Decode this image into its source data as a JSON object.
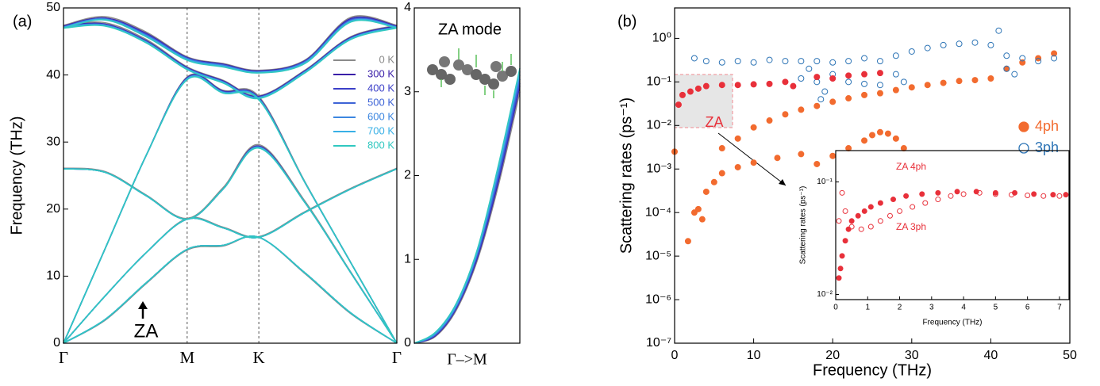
{
  "chart_data": [
    {
      "type": "line",
      "panel_label": "(a)",
      "ylabel": "Frequency (THz)",
      "annotations": [
        "ZA"
      ],
      "x": [
        0,
        0.124,
        0.248,
        0.371,
        0.479,
        0.586,
        0.724,
        0.862,
        1
      ],
      "xlim": [
        0,
        1
      ],
      "xticks": [
        {
          "value": 0,
          "label": "Γ"
        },
        {
          "value": 0.371,
          "label": "M"
        },
        {
          "value": 0.586,
          "label": "K"
        },
        {
          "value": 1,
          "label": "Γ"
        }
      ],
      "xgrid": true,
      "ylim": [
        0,
        50
      ],
      "yticks": [
        0,
        10,
        20,
        30,
        40,
        50
      ],
      "legend": "upper right",
      "series": [
        {
          "name": "0 K",
          "color": "#8a8a8a",
          "values": [
            [
              0,
              3.4,
              8.9,
              13.9,
              14.5,
              15.8,
              10.4,
              4.4,
              0
            ],
            [
              0,
              7,
              13.5,
              18.6,
              17.3,
              15.9,
              19.6,
              23.1,
              26.1
            ],
            [
              26.1,
              25.6,
              22.1,
              18.6,
              23.2,
              29.6,
              21.2,
              10.6,
              0
            ],
            [
              0,
              14,
              28,
              39.7,
              37.7,
              36.8,
              24.1,
              12,
              0
            ],
            [
              47.4,
              47.8,
              45.3,
              41.2,
              39.2,
              36.9,
              40.7,
              45.7,
              47.4
            ],
            [
              47.4,
              48.7,
              46.4,
              42.7,
              41.7,
              40.7,
              42.2,
              48.6,
              47.4
            ]
          ]
        },
        {
          "name": "300 K",
          "color": "#3a1fa8",
          "values": [
            [
              0,
              3.5,
              9,
              14,
              14.6,
              15.8,
              10.5,
              4.5,
              0
            ],
            [
              0,
              7,
              13.5,
              18.5,
              17.2,
              15.8,
              19.5,
              23,
              26
            ],
            [
              26,
              25.5,
              22,
              18.5,
              23,
              29.4,
              21,
              10.5,
              0
            ],
            [
              0,
              14,
              28,
              39.6,
              37.6,
              36.6,
              24,
              12,
              0
            ],
            [
              47.3,
              47.6,
              45.1,
              41.1,
              39.1,
              36.8,
              40.6,
              45.6,
              47.3
            ],
            [
              47.3,
              48.5,
              46.2,
              42.6,
              41.6,
              40.6,
              42.1,
              48.4,
              47.3
            ]
          ]
        },
        {
          "name": "400 K",
          "color": "#3b3fc8",
          "values": [
            [
              0,
              3.5,
              9,
              14,
              14.6,
              15.8,
              10.5,
              4.5,
              0
            ],
            [
              0,
              7,
              13.5,
              18.5,
              17.2,
              15.8,
              19.5,
              23,
              26
            ],
            [
              26,
              25.5,
              22,
              18.5,
              23,
              29.3,
              21,
              10.5,
              0
            ],
            [
              0,
              14,
              28,
              39.5,
              37.5,
              36.5,
              24,
              12,
              0
            ],
            [
              47.2,
              47.5,
              45,
              41,
              39,
              36.7,
              40.5,
              45.5,
              47.2
            ],
            [
              47.2,
              48.4,
              46.1,
              42.5,
              41.5,
              40.5,
              42,
              48.3,
              47.2
            ]
          ]
        },
        {
          "name": "500 K",
          "color": "#3d63d6",
          "values": [
            [
              0,
              3.5,
              9,
              14,
              14.6,
              15.8,
              10.5,
              4.5,
              0
            ],
            [
              0,
              7,
              13.5,
              18.5,
              17.2,
              15.8,
              19.5,
              23,
              26
            ],
            [
              26,
              25.5,
              22,
              18.5,
              23,
              29.3,
              21,
              10.5,
              0
            ],
            [
              0,
              14,
              28,
              39.5,
              37.5,
              36.5,
              24,
              12,
              0
            ],
            [
              47.2,
              47.5,
              45,
              41,
              39,
              36.7,
              40.5,
              45.5,
              47.2
            ],
            [
              47.2,
              48.4,
              46,
              42.5,
              41.5,
              40.5,
              42,
              48.2,
              47.2
            ]
          ]
        },
        {
          "name": "600 K",
          "color": "#3c86e0",
          "values": [
            [
              0,
              3.5,
              9,
              14,
              14.6,
              15.8,
              10.5,
              4.5,
              0
            ],
            [
              0,
              7,
              13.5,
              18.5,
              17.2,
              15.8,
              19.5,
              23,
              26
            ],
            [
              26,
              25.5,
              22,
              18.5,
              23,
              29.2,
              21,
              10.5,
              0
            ],
            [
              0,
              14,
              28,
              39.4,
              37.4,
              36.4,
              24,
              12,
              0
            ],
            [
              47.1,
              47.4,
              44.9,
              40.9,
              38.9,
              36.6,
              40.4,
              45.4,
              47.1
            ],
            [
              47.1,
              48.3,
              45.9,
              42.4,
              41.4,
              40.4,
              41.9,
              48.1,
              47.1
            ]
          ]
        },
        {
          "name": "700 K",
          "color": "#38b0e6",
          "values": [
            [
              0,
              3.5,
              9,
              14,
              14.6,
              15.8,
              10.5,
              4.5,
              0
            ],
            [
              0,
              7,
              13.5,
              18.5,
              17.2,
              15.8,
              19.5,
              23,
              26
            ],
            [
              26,
              25.5,
              22,
              18.5,
              23,
              29.2,
              21,
              10.5,
              0
            ],
            [
              0,
              14,
              28,
              39.4,
              37.4,
              36.4,
              24,
              12,
              0
            ],
            [
              47.1,
              47.4,
              44.9,
              40.9,
              38.9,
              36.6,
              40.4,
              45.4,
              47.1
            ],
            [
              47.1,
              48.3,
              45.8,
              42.3,
              41.3,
              40.4,
              41.8,
              48,
              47.1
            ]
          ]
        },
        {
          "name": "800 K",
          "color": "#30c8c0",
          "values": [
            [
              0,
              3.5,
              9,
              14,
              14.6,
              15.8,
              10.5,
              4.5,
              0
            ],
            [
              0,
              7,
              13.5,
              18.5,
              17.2,
              15.8,
              19.5,
              23,
              26
            ],
            [
              26,
              25.5,
              22,
              18.5,
              23,
              29.1,
              21,
              10.5,
              0
            ],
            [
              0,
              14,
              28,
              39.3,
              37.3,
              36.3,
              24,
              12,
              0
            ],
            [
              47,
              47.3,
              44.8,
              40.8,
              38.8,
              36.5,
              40.3,
              45.3,
              47
            ],
            [
              47,
              48.2,
              45.7,
              42.2,
              41.2,
              40.3,
              41.7,
              47.9,
              47
            ]
          ]
        }
      ]
    },
    {
      "type": "line",
      "title": "ZA mode",
      "xlabel": "Γ–>M",
      "x": [
        0,
        0.2,
        0.4,
        0.6,
        0.8,
        1
      ],
      "xlim": [
        0,
        1
      ],
      "ylim": [
        0,
        4
      ],
      "yticks": [
        0,
        1,
        2,
        3,
        4
      ],
      "series": [
        {
          "color": "#8a8a8a",
          "values": [
            0,
            0.08,
            0.4,
            1.0,
            1.9,
            3.0
          ]
        },
        {
          "color": "#3a1fa8",
          "values": [
            0,
            0.09,
            0.42,
            1.03,
            1.95,
            3.07
          ]
        },
        {
          "color": "#3b3fc8",
          "values": [
            0,
            0.1,
            0.43,
            1.05,
            1.98,
            3.1
          ]
        },
        {
          "color": "#3d63d6",
          "values": [
            0,
            0.1,
            0.44,
            1.07,
            2.02,
            3.15
          ]
        },
        {
          "color": "#3c86e0",
          "values": [
            0,
            0.11,
            0.45,
            1.09,
            2.06,
            3.2
          ]
        },
        {
          "color": "#38b0e6",
          "values": [
            0,
            0.12,
            0.46,
            1.11,
            2.1,
            3.24
          ]
        },
        {
          "color": "#30c8c0",
          "values": [
            0,
            0.13,
            0.48,
            1.13,
            2.14,
            3.28
          ]
        }
      ]
    },
    {
      "type": "scatter",
      "panel_label": "(b)",
      "xlabel": "Frequency (THz)",
      "ylabel": "Scattering rates (ps⁻¹)",
      "annotations": [
        "ZA"
      ],
      "xlim": [
        0,
        50
      ],
      "xticks": [
        0,
        10,
        20,
        30,
        40,
        50
      ],
      "ylog": true,
      "ylim": [
        1e-07,
        5
      ],
      "yticks": [
        {
          "value": 1e-07,
          "label": "10⁻⁷"
        },
        {
          "value": 1e-06,
          "label": "10⁻⁶"
        },
        {
          "value": 1e-05,
          "label": "10⁻⁵"
        },
        {
          "value": 0.0001,
          "label": "10⁻⁴"
        },
        {
          "value": 0.001,
          "label": "10⁻³"
        },
        {
          "value": 0.01,
          "label": "10⁻²"
        },
        {
          "value": 0.1,
          "label": "10⁻¹"
        },
        {
          "value": 1,
          "label": "10⁰"
        }
      ],
      "legend": "center right",
      "series": [
        {
          "name": "4ph",
          "color": "#f26b2f",
          "marker": "filled",
          "x": [
            0,
            1.7,
            2.5,
            3,
            3.5,
            4,
            5,
            6,
            8,
            10,
            13,
            16,
            6,
            8,
            10,
            12,
            14,
            16,
            18,
            20,
            22,
            24,
            26,
            28,
            30,
            32,
            34,
            36,
            38,
            40,
            42,
            44,
            46,
            48,
            18,
            20,
            22,
            24,
            25,
            26,
            27,
            28,
            29
          ],
          "values": [
            0.0025,
            2.2e-05,
            0.0001,
            0.00012,
            7e-05,
            0.0003,
            0.0005,
            0.0008,
            0.0011,
            0.0014,
            0.0018,
            0.0022,
            0.003,
            0.005,
            0.009,
            0.013,
            0.018,
            0.023,
            0.028,
            0.035,
            0.042,
            0.05,
            0.055,
            0.065,
            0.075,
            0.085,
            0.095,
            0.105,
            0.11,
            0.12,
            0.2,
            0.28,
            0.35,
            0.45,
            0.0013,
            0.002,
            0.003,
            0.0045,
            0.006,
            0.007,
            0.0065,
            0.005,
            0.003
          ]
        },
        {
          "name": "3ph",
          "color": "#2e75b6",
          "marker": "open",
          "x": [
            2.5,
            4,
            6,
            8,
            10,
            12,
            14,
            16,
            18,
            20,
            22,
            24,
            26,
            28,
            30,
            32,
            34,
            36,
            38,
            40,
            41,
            42,
            44,
            46,
            48,
            16,
            17,
            18,
            18.5,
            19,
            20,
            22,
            24,
            26,
            28,
            29,
            42,
            43
          ],
          "values": [
            0.35,
            0.3,
            0.28,
            0.3,
            0.28,
            0.32,
            0.3,
            0.3,
            0.3,
            0.28,
            0.3,
            0.35,
            0.3,
            0.4,
            0.5,
            0.6,
            0.7,
            0.75,
            0.8,
            0.7,
            1.5,
            0.4,
            0.35,
            0.3,
            0.35,
            0.12,
            0.2,
            0.1,
            0.04,
            0.06,
            0.15,
            0.1,
            0.09,
            0.085,
            0.15,
            0.1,
            0.2,
            0.15
          ]
        },
        {
          "color": "#e8303a",
          "marker": "filled",
          "x": [
            0.5,
            1,
            2,
            3,
            4,
            6,
            8,
            10,
            12,
            14,
            15,
            18,
            20,
            22,
            24,
            26
          ],
          "values": [
            0.03,
            0.05,
            0.06,
            0.07,
            0.08,
            0.085,
            0.085,
            0.088,
            0.09,
            0.1,
            0.08,
            0.13,
            0.12,
            0.14,
            0.15,
            0.16
          ]
        }
      ]
    },
    {
      "type": "scatter",
      "xlabel": "Frequency (THz)",
      "ylabel": "Scattering rates (ps⁻¹)",
      "xlim": [
        0,
        7.3
      ],
      "xticks": [
        0,
        1,
        2,
        3,
        4,
        5,
        6,
        7
      ],
      "ylog": true,
      "ylim": [
        0.009,
        0.19
      ],
      "yticks": [
        {
          "value": 0.01,
          "label": "10⁻²"
        },
        {
          "value": 0.1,
          "label": "10⁻¹"
        }
      ],
      "series": [
        {
          "name": "ZA 4ph",
          "color": "#e8303a",
          "marker": "filled",
          "x": [
            0.1,
            0.15,
            0.2,
            0.3,
            0.4,
            0.5,
            0.7,
            0.9,
            1.1,
            1.4,
            1.8,
            2.2,
            2.7,
            3.2,
            3.8,
            4.4,
            5,
            5.6,
            6.2,
            6.8,
            7.2
          ],
          "values": [
            0.014,
            0.017,
            0.022,
            0.03,
            0.038,
            0.045,
            0.05,
            0.055,
            0.06,
            0.065,
            0.07,
            0.075,
            0.078,
            0.08,
            0.082,
            0.082,
            0.08,
            0.08,
            0.078,
            0.077,
            0.077
          ]
        },
        {
          "name": "ZA 3ph",
          "color": "#e8303a",
          "marker": "open",
          "x": [
            0.1,
            0.2,
            0.3,
            0.5,
            0.8,
            1.1,
            1.4,
            1.7,
            2,
            2.4,
            2.8,
            3.2,
            3.6,
            4,
            4.5,
            5,
            5.5,
            6,
            6.5,
            7
          ],
          "values": [
            0.045,
            0.08,
            0.055,
            0.04,
            0.038,
            0.04,
            0.045,
            0.05,
            0.055,
            0.06,
            0.065,
            0.07,
            0.075,
            0.078,
            0.08,
            0.078,
            0.077,
            0.076,
            0.075,
            0.075
          ]
        }
      ]
    }
  ]
}
